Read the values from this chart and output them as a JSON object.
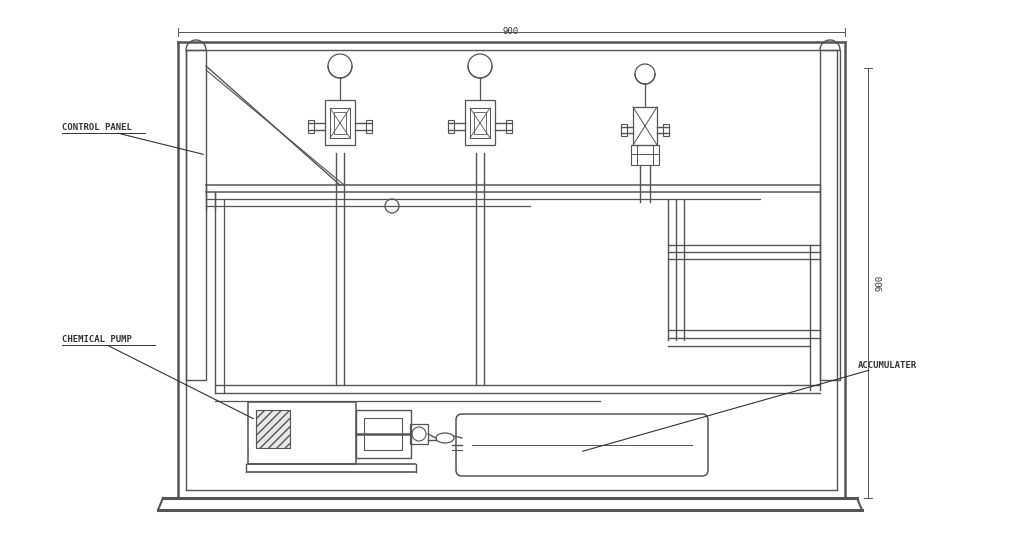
{
  "bg_color": "#ffffff",
  "line_color": "#555555",
  "dark_color": "#333333",
  "text_color": "#333333",
  "fig_width": 10.24,
  "fig_height": 5.53,
  "labels": {
    "control_panel": "CONTROL PANEL",
    "chemical_pump": "CHEMICAL PUMP",
    "accumulater": "ACCUMULATER"
  },
  "dim_top": "900",
  "dim_right": "900"
}
